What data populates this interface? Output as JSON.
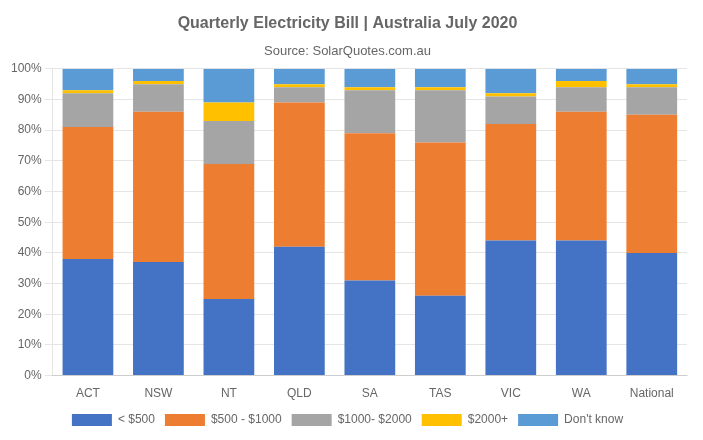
{
  "chart_data": {
    "type": "bar",
    "stacked": true,
    "title": "Quarterly Electricity Bill | Australia July 2020",
    "subtitle": "Source: SolarQuotes.com.au",
    "categories": [
      "ACT",
      "NSW",
      "NT",
      "QLD",
      "SA",
      "TAS",
      "VIC",
      "WA",
      "National"
    ],
    "series": [
      {
        "name": "< $500",
        "color": "#4472C4",
        "values": [
          38,
          37,
          25,
          42,
          31,
          26,
          44,
          44,
          40
        ]
      },
      {
        "name": "$500 - $1000",
        "color": "#ED7D31",
        "values": [
          43,
          49,
          44,
          47,
          48,
          50,
          38,
          42,
          45
        ]
      },
      {
        "name": "$1000- $2000",
        "color": "#A5A5A5",
        "values": [
          11,
          9,
          14,
          5,
          14,
          17,
          9,
          8,
          9
        ]
      },
      {
        "name": "$2000+",
        "color": "#FFC000",
        "values": [
          1,
          1,
          6,
          1,
          1,
          1,
          1,
          2,
          1
        ]
      },
      {
        "name": "Don't know",
        "color": "#5B9BD5",
        "values": [
          7,
          4,
          11,
          5,
          6,
          6,
          8,
          4,
          5
        ]
      }
    ],
    "ylim": [
      0,
      100
    ],
    "yticks": [
      {
        "value": 0,
        "label": "0%"
      },
      {
        "value": 10,
        "label": "10%"
      },
      {
        "value": 20,
        "label": "20%"
      },
      {
        "value": 30,
        "label": "30%"
      },
      {
        "value": 40,
        "label": "40%"
      },
      {
        "value": 50,
        "label": "50%"
      },
      {
        "value": 60,
        "label": "60%"
      },
      {
        "value": 70,
        "label": "70%"
      },
      {
        "value": 80,
        "label": "80%"
      },
      {
        "value": 90,
        "label": "90%"
      },
      {
        "value": 100,
        "label": "100%"
      }
    ],
    "grid": true,
    "legend": "bottom"
  }
}
